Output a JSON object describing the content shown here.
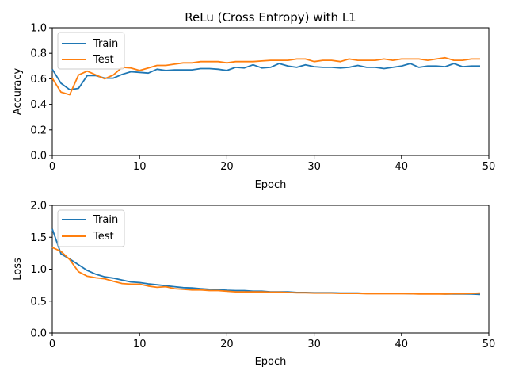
{
  "colors": {
    "train": "#1f77b4",
    "test": "#ff7f0e"
  },
  "chart_data": [
    {
      "type": "line",
      "title": "ReLu (Cross Entropy) with L1",
      "xlabel": "Epoch",
      "ylabel": "Accuracy",
      "xlim": [
        0,
        50
      ],
      "ylim": [
        0,
        1.0
      ],
      "xticks": [
        0,
        10,
        20,
        30,
        40,
        50
      ],
      "yticks": [
        "0.0",
        "0.2",
        "0.4",
        "0.6",
        "0.8",
        "1.0"
      ],
      "grid": false,
      "legend": "top-left",
      "x": [
        0,
        1,
        2,
        3,
        4,
        5,
        6,
        7,
        8,
        9,
        10,
        11,
        12,
        13,
        14,
        15,
        16,
        17,
        18,
        19,
        20,
        21,
        22,
        23,
        24,
        25,
        26,
        27,
        28,
        29,
        30,
        31,
        32,
        33,
        34,
        35,
        36,
        37,
        38,
        39,
        40,
        41,
        42,
        43,
        44,
        45,
        46,
        47,
        48,
        49
      ],
      "series": [
        {
          "name": "Train",
          "values": [
            0.675,
            0.565,
            0.515,
            0.525,
            0.625,
            0.625,
            0.605,
            0.605,
            0.635,
            0.655,
            0.65,
            0.645,
            0.675,
            0.665,
            0.67,
            0.67,
            0.67,
            0.68,
            0.68,
            0.675,
            0.665,
            0.69,
            0.685,
            0.71,
            0.685,
            0.69,
            0.72,
            0.7,
            0.69,
            0.71,
            0.695,
            0.69,
            0.69,
            0.685,
            0.69,
            0.705,
            0.69,
            0.69,
            0.68,
            0.69,
            0.7,
            0.72,
            0.69,
            0.7,
            0.7,
            0.695,
            0.72,
            0.695,
            0.7,
            0.7
          ]
        },
        {
          "name": "Test",
          "values": [
            0.605,
            0.495,
            0.475,
            0.63,
            0.66,
            0.63,
            0.6,
            0.63,
            0.69,
            0.685,
            0.665,
            0.685,
            0.705,
            0.705,
            0.715,
            0.725,
            0.725,
            0.735,
            0.735,
            0.735,
            0.725,
            0.735,
            0.735,
            0.735,
            0.74,
            0.745,
            0.745,
            0.745,
            0.755,
            0.755,
            0.735,
            0.745,
            0.745,
            0.735,
            0.755,
            0.745,
            0.745,
            0.745,
            0.755,
            0.745,
            0.755,
            0.755,
            0.755,
            0.745,
            0.755,
            0.765,
            0.745,
            0.745,
            0.755,
            0.755
          ]
        }
      ]
    },
    {
      "type": "line",
      "title": "",
      "xlabel": "Epoch",
      "ylabel": "Loss",
      "xlim": [
        0,
        50
      ],
      "ylim": [
        0,
        2.0
      ],
      "xticks": [
        0,
        10,
        20,
        30,
        40,
        50
      ],
      "yticks": [
        "0.0",
        "0.5",
        "1.0",
        "1.5",
        "2.0"
      ],
      "grid": false,
      "legend": "top-left",
      "x": [
        0,
        1,
        2,
        3,
        4,
        5,
        6,
        7,
        8,
        9,
        10,
        11,
        12,
        13,
        14,
        15,
        16,
        17,
        18,
        19,
        20,
        21,
        22,
        23,
        24,
        25,
        26,
        27,
        28,
        29,
        30,
        31,
        32,
        33,
        34,
        35,
        36,
        37,
        38,
        39,
        40,
        41,
        42,
        43,
        44,
        45,
        46,
        47,
        48,
        49
      ],
      "series": [
        {
          "name": "Train",
          "values": [
            1.63,
            1.24,
            1.16,
            1.07,
            0.98,
            0.92,
            0.88,
            0.86,
            0.83,
            0.8,
            0.79,
            0.77,
            0.755,
            0.74,
            0.725,
            0.71,
            0.705,
            0.695,
            0.685,
            0.68,
            0.67,
            0.665,
            0.665,
            0.655,
            0.655,
            0.645,
            0.645,
            0.645,
            0.635,
            0.635,
            0.63,
            0.63,
            0.63,
            0.625,
            0.625,
            0.625,
            0.62,
            0.62,
            0.62,
            0.62,
            0.62,
            0.615,
            0.615,
            0.615,
            0.615,
            0.61,
            0.61,
            0.61,
            0.61,
            0.605
          ]
        },
        {
          "name": "Test",
          "values": [
            1.34,
            1.28,
            1.15,
            0.96,
            0.89,
            0.865,
            0.85,
            0.81,
            0.775,
            0.765,
            0.765,
            0.735,
            0.715,
            0.725,
            0.695,
            0.685,
            0.675,
            0.675,
            0.665,
            0.665,
            0.655,
            0.645,
            0.645,
            0.645,
            0.645,
            0.64,
            0.64,
            0.635,
            0.63,
            0.63,
            0.625,
            0.625,
            0.625,
            0.62,
            0.62,
            0.62,
            0.615,
            0.615,
            0.615,
            0.615,
            0.615,
            0.615,
            0.61,
            0.61,
            0.61,
            0.61,
            0.615,
            0.615,
            0.62,
            0.625
          ]
        }
      ]
    }
  ]
}
